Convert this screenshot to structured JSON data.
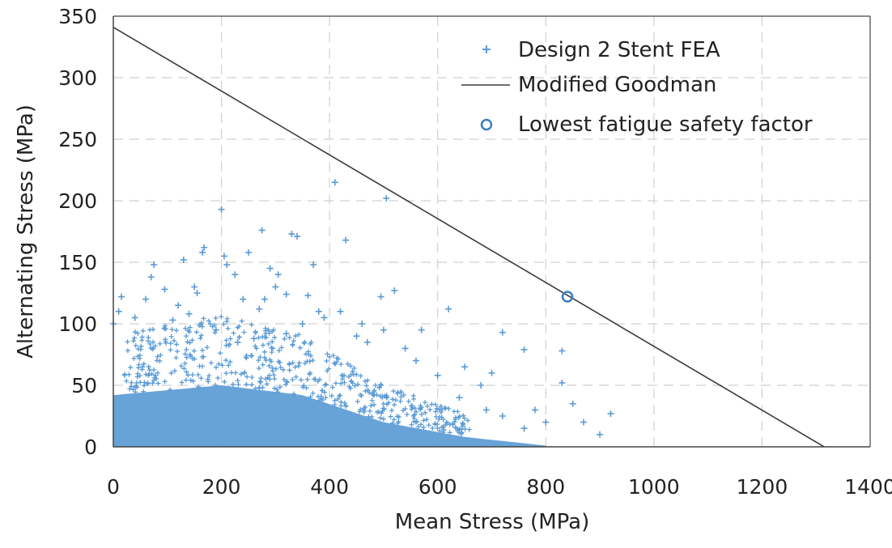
{
  "chart_data": {
    "type": "scatter",
    "xlabel": "Mean Stress (MPa)",
    "ylabel": "Alternating Stress (MPa)",
    "xlim": [
      0,
      1400
    ],
    "ylim": [
      0,
      350
    ],
    "x_ticks": [
      0,
      200,
      400,
      600,
      800,
      1000,
      1200,
      1400
    ],
    "y_ticks": [
      0,
      50,
      100,
      150,
      200,
      250,
      300,
      350
    ],
    "x_tick_labels": [
      "0",
      "200",
      "400",
      "600",
      "800",
      "1000",
      "1200",
      "1400"
    ],
    "y_tick_labels": [
      "0",
      "50",
      "100",
      "150",
      "200",
      "250",
      "300",
      "350"
    ],
    "grid": true,
    "legend_position": "top-right",
    "colors": {
      "points": "#5b9bd5",
      "line": "#3c3c3c",
      "grid": "#d0d0d0",
      "axis": "#444444"
    },
    "series": [
      {
        "name": "Design 2 Stent FEA",
        "kind": "scatter",
        "marker": "plus",
        "cloud_note": "dense point cloud; only outlying points listed",
        "points": [
          [
            0,
            100
          ],
          [
            10,
            110
          ],
          [
            15,
            122
          ],
          [
            40,
            105
          ],
          [
            60,
            120
          ],
          [
            70,
            138
          ],
          [
            75,
            148
          ],
          [
            95,
            128
          ],
          [
            110,
            103
          ],
          [
            120,
            115
          ],
          [
            130,
            152
          ],
          [
            140,
            108
          ],
          [
            150,
            130
          ],
          [
            155,
            125
          ],
          [
            165,
            158
          ],
          [
            168,
            162
          ],
          [
            190,
            95
          ],
          [
            200,
            193
          ],
          [
            205,
            155
          ],
          [
            210,
            148
          ],
          [
            225,
            140
          ],
          [
            240,
            120
          ],
          [
            250,
            158
          ],
          [
            270,
            112
          ],
          [
            275,
            176
          ],
          [
            280,
            120
          ],
          [
            290,
            145
          ],
          [
            300,
            130
          ],
          [
            305,
            140
          ],
          [
            320,
            124
          ],
          [
            330,
            173
          ],
          [
            340,
            171
          ],
          [
            360,
            123
          ],
          [
            370,
            148
          ],
          [
            380,
            110
          ],
          [
            410,
            215
          ],
          [
            430,
            168
          ],
          [
            460,
            100
          ],
          [
            495,
            122
          ],
          [
            505,
            202
          ],
          [
            520,
            127
          ],
          [
            570,
            95
          ],
          [
            620,
            112
          ],
          [
            720,
            93
          ],
          [
            760,
            79
          ],
          [
            830,
            78
          ],
          [
            830,
            52
          ],
          [
            850,
            35
          ],
          [
            870,
            20
          ],
          [
            920,
            27
          ],
          [
            900,
            10
          ],
          [
            700,
            60
          ],
          [
            650,
            65
          ],
          [
            600,
            58
          ],
          [
            680,
            50
          ],
          [
            780,
            30
          ],
          [
            800,
            20
          ],
          [
            760,
            15
          ],
          [
            720,
            25
          ],
          [
            690,
            30
          ],
          [
            640,
            40
          ],
          [
            560,
            70
          ],
          [
            540,
            80
          ],
          [
            500,
            95
          ],
          [
            470,
            85
          ],
          [
            450,
            90
          ],
          [
            420,
            110
          ],
          [
            390,
            105
          ],
          [
            350,
            100
          ],
          [
            320,
            92
          ],
          [
            260,
            88
          ],
          [
            230,
            85
          ]
        ]
      },
      {
        "name": "Modified Goodman",
        "kind": "line",
        "points": [
          [
            0,
            341
          ],
          [
            1315,
            0
          ]
        ]
      },
      {
        "name": "Lowest fatigue safety factor",
        "kind": "scatter",
        "marker": "circle",
        "points": [
          [
            840,
            122
          ]
        ]
      }
    ]
  }
}
